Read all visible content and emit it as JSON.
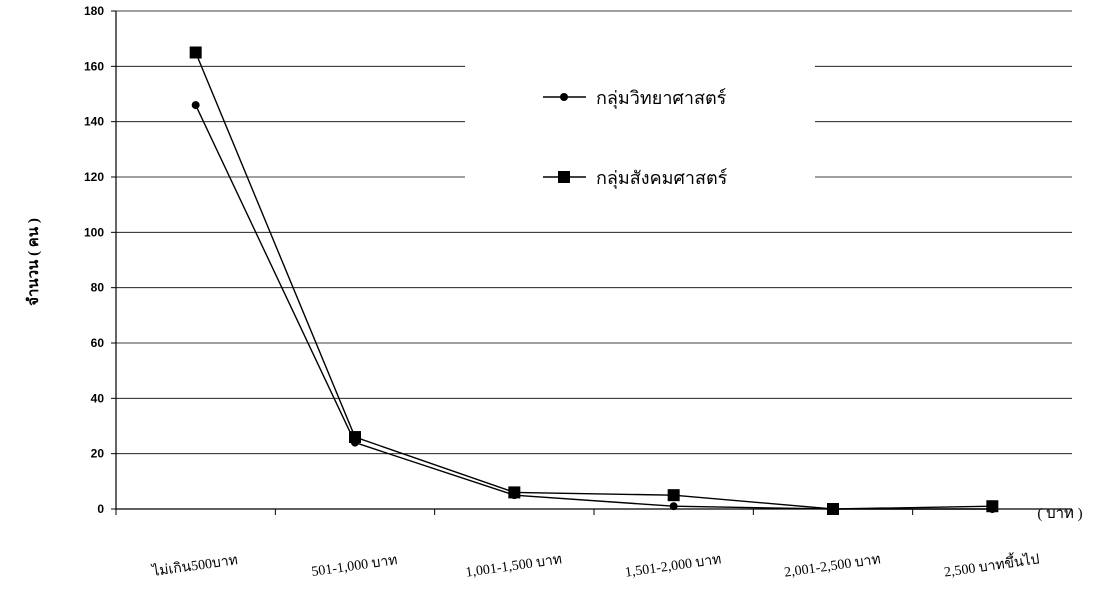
{
  "chart_data": {
    "type": "line",
    "categories": [
      "ไม่เกิน500บาท",
      "501-1,000 บาท",
      "1,001-1,500 บาท",
      "1,501-2,000 บาท",
      "2,001-2,500 บาท",
      "2,500 บาทขึ้นไป"
    ],
    "series": [
      {
        "name": "กลุ่มวิทยาศาสตร์",
        "marker": "circle",
        "values": [
          146,
          24,
          5,
          1,
          0,
          0
        ]
      },
      {
        "name": "กลุ่มสังคมศาสตร์",
        "marker": "square",
        "values": [
          165,
          26,
          6,
          5,
          0,
          1
        ]
      }
    ],
    "ylabel": "จำนวน ( คน )",
    "xunit": "( บาท )",
    "ylim": [
      0,
      180
    ],
    "yticks": [
      "0",
      "20",
      "40",
      "60",
      "80",
      "100",
      "120",
      "140",
      "160",
      "180"
    ],
    "grid": true,
    "legend_position": "top-center"
  }
}
